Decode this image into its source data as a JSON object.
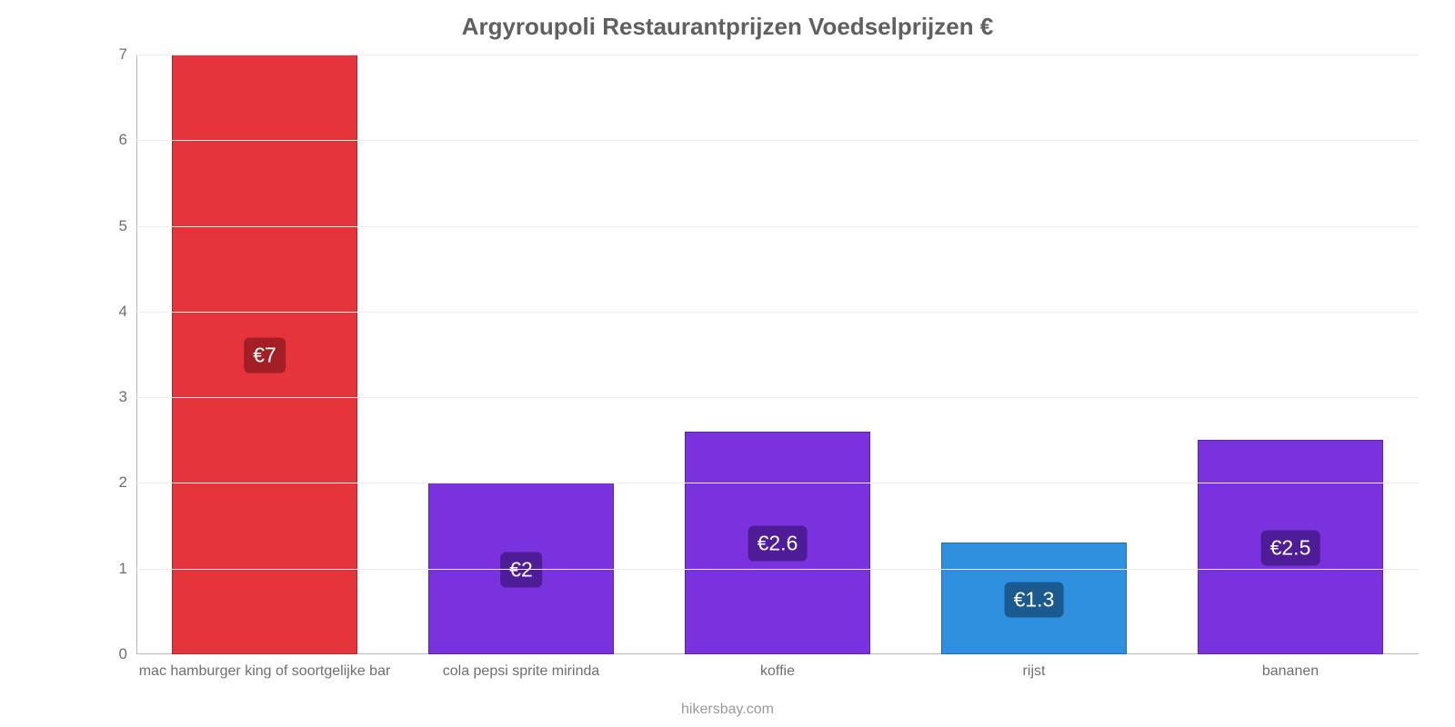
{
  "chart": {
    "type": "bar",
    "title": "Argyroupoli Restaurantprijzen Voedselprijzen €",
    "title_fontsize": 26,
    "title_color": "#606060",
    "attribution": "hikersbay.com",
    "attribution_fontsize": 16,
    "attribution_color": "#9a9a9a",
    "background_color": "#ffffff",
    "grid_color": "#f3ecee",
    "axis_color": "#b8b8b8",
    "tick_color": "#6f6f6f",
    "ylim": [
      0,
      7
    ],
    "ytick_step": 1,
    "x_label_fontsize": 16,
    "y_tick_fontsize": 17,
    "bar_width_ratio": 0.72,
    "value_label_fontsize": 23,
    "value_label_text_color": "#ffffff",
    "value_label_radius": 6,
    "value_label_y_ratio": 0.5,
    "categories": [
      "mac hamburger king of soortgelijke bar",
      "cola pepsi sprite mirinda",
      "koffie",
      "rijst",
      "bananen"
    ],
    "values": [
      7,
      2,
      2.6,
      1.3,
      2.5
    ],
    "value_labels": [
      "€7",
      "€2",
      "€2.6",
      "€1.3",
      "€2.5"
    ],
    "bar_colors": [
      "#e6343c",
      "#7a32de",
      "#7a32de",
      "#2f90df",
      "#7a32de"
    ],
    "value_label_bg_colors": [
      "#a31f25",
      "#4d1c96",
      "#4d1c96",
      "#1a5a8f",
      "#4d1c96"
    ]
  }
}
